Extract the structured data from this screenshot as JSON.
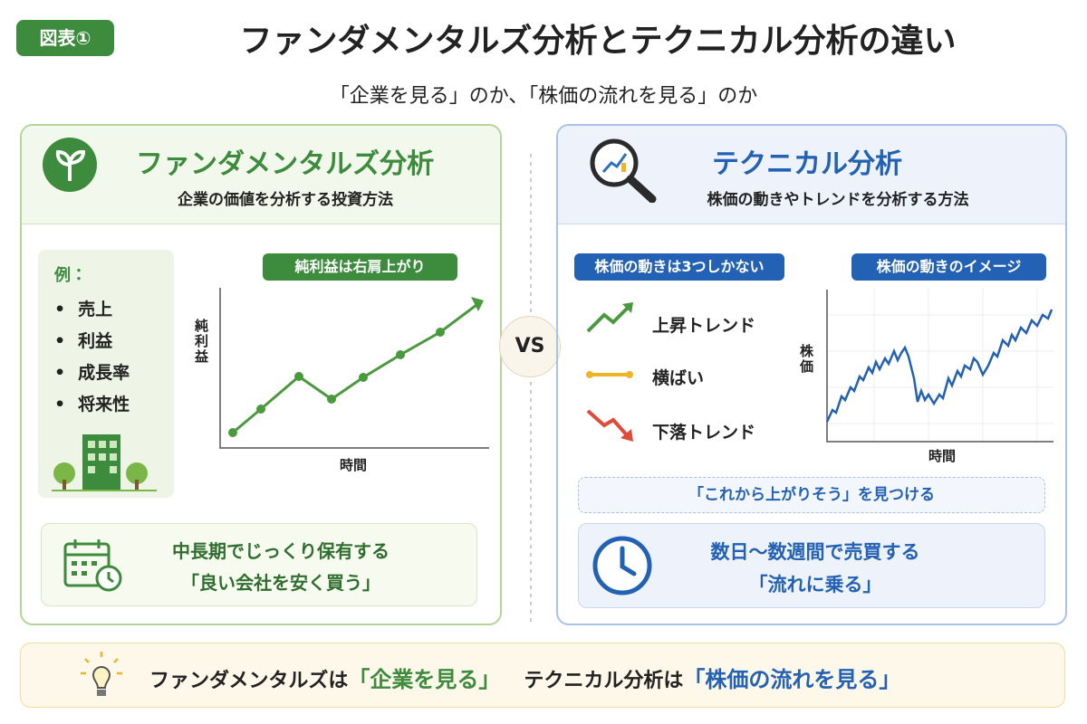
{
  "header": {
    "badge": "図表①",
    "title": "ファンダメンタルズ分析とテクニカル分析の違い",
    "subtitle": "「企業を見る」のか、「株価の流れを見る」のか"
  },
  "left": {
    "title": "ファンダメンタルズ分析",
    "description": "企業の価値を分析する投資方法",
    "examples_label": "例：",
    "examples": [
      "売上",
      "利益",
      "成長率",
      "将来性"
    ],
    "chart_tag": "純利益は右肩上がり",
    "y_label": "純利益",
    "x_label": "時間",
    "summary": [
      "中長期でじっくり保有する",
      "「良い会社を安く買う」"
    ]
  },
  "vs": "VS",
  "right": {
    "title": "テクニカル分析",
    "description": "株価の動きやトレンドを分析する方法",
    "trends_tag": "株価の動きは3つしかない",
    "trends": [
      "上昇トレンド",
      "横ばい",
      "下落トレンド"
    ],
    "chart_tag": "株価の動きのイメージ",
    "y_label": "株価",
    "x_label": "時間",
    "find": "「これから上がりそう」を見つける",
    "summary": [
      "数日〜数週間で売買する",
      "「流れに乗る」"
    ]
  },
  "footer": {
    "left_text": "ファンダメンタルズは",
    "left_highlight": "「企業を見る」",
    "right_text": "テクニカル分析は",
    "right_highlight": "「株価の流れを見る」"
  }
}
